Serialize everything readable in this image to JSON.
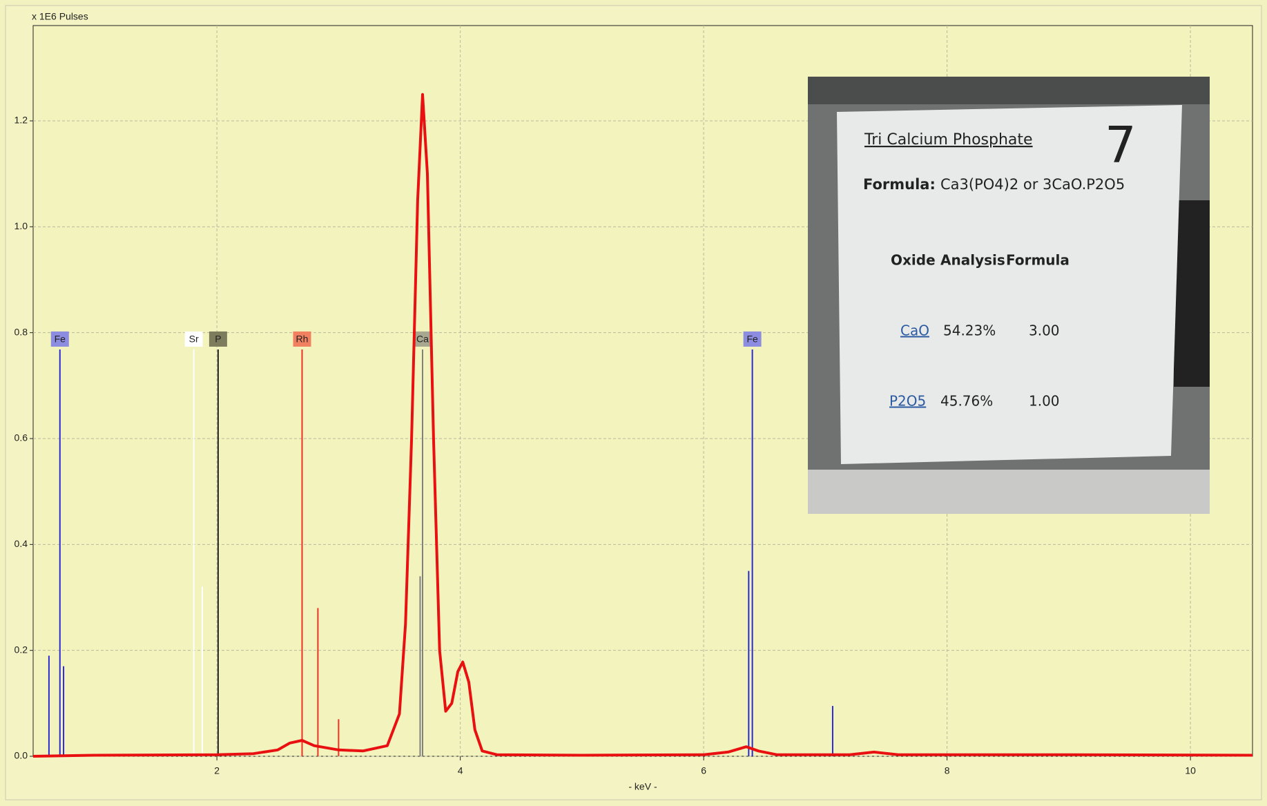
{
  "chart_data": {
    "type": "line",
    "ylabel": "x 1E6 Pulses",
    "xlabel": "- keV -",
    "x": [
      0.49,
      1.0,
      2.0,
      2.3,
      2.5,
      2.6,
      2.7,
      2.8,
      3.0,
      3.2,
      3.4,
      3.5,
      3.55,
      3.6,
      3.65,
      3.69,
      3.73,
      3.78,
      3.83,
      3.88,
      3.93,
      3.98,
      4.02,
      4.07,
      4.12,
      4.18,
      4.3,
      5.0,
      6.0,
      6.2,
      6.35,
      6.45,
      6.6,
      7.2,
      7.4,
      7.6,
      9.0,
      10.51
    ],
    "series": [
      {
        "color": "#e81010",
        "values": [
          0,
          0.002,
          0.003,
          0.005,
          0.012,
          0.025,
          0.03,
          0.02,
          0.012,
          0.01,
          0.02,
          0.08,
          0.25,
          0.6,
          1.05,
          1.25,
          1.1,
          0.6,
          0.2,
          0.085,
          0.1,
          0.16,
          0.178,
          0.14,
          0.05,
          0.01,
          0.003,
          0.002,
          0.003,
          0.008,
          0.018,
          0.01,
          0.003,
          0.003,
          0.008,
          0.003,
          0.003,
          0.002
        ]
      }
    ],
    "markers": [
      {
        "label": "Fe",
        "x": 0.71,
        "color": "#2a2ad0",
        "label_bg": "#8c8ce0"
      },
      {
        "label": "Sr",
        "x": 1.81,
        "color": "#ffffff",
        "label_bg": "#ffffff"
      },
      {
        "label": "P",
        "x": 2.01,
        "color": "#222222",
        "label_bg": "#7d7d5e"
      },
      {
        "label": "Rh",
        "x": 2.7,
        "color": "#f03020",
        "label_bg": "#f08060"
      },
      {
        "label": "Ca",
        "x": 3.69,
        "color": "#808080",
        "label_bg": "#a8a890"
      },
      {
        "label": "Fe",
        "x": 6.4,
        "color": "#2a2ad0",
        "label_bg": "#8c8ce0"
      }
    ],
    "peaks": [
      {
        "x": 0.62,
        "height": 0.19,
        "color": "#2a2ad0"
      },
      {
        "x": 0.74,
        "height": 0.17,
        "color": "#2a2ad0"
      },
      {
        "x": 1.88,
        "height": 0.32,
        "color": "#ffffff"
      },
      {
        "x": 2.83,
        "height": 0.28,
        "color": "#f03020"
      },
      {
        "x": 3.0,
        "height": 0.07,
        "color": "#f03020"
      },
      {
        "x": 3.67,
        "height": 0.34,
        "color": "#808080"
      },
      {
        "x": 6.37,
        "height": 0.35,
        "color": "#2a2ad0"
      },
      {
        "x": 7.06,
        "height": 0.095,
        "color": "#2a2ad0"
      }
    ],
    "xlim": [
      0.49,
      10.51
    ],
    "xticks": [
      2,
      4,
      6,
      8,
      10
    ],
    "ylim": [
      0,
      1.38
    ],
    "yticks": [
      {
        "value": 0,
        "label": "0.0"
      },
      0.2,
      0.4,
      0.6,
      0.8,
      {
        "value": 1,
        "label": "1.0"
      },
      1.2
    ],
    "grid": true
  },
  "inset": {
    "title": "Tri Calcium Phosphate",
    "number": "7",
    "formula_label": "Formula:",
    "formula": "Ca3(PO4)2 or 3CaO.P2O5",
    "table": {
      "header": [
        "Oxide",
        "Analysis",
        "Formula"
      ],
      "rows": [
        [
          "CaO",
          "54.23%",
          "3.00"
        ],
        [
          "P2O5",
          "45.76%",
          "1.00"
        ]
      ]
    }
  }
}
